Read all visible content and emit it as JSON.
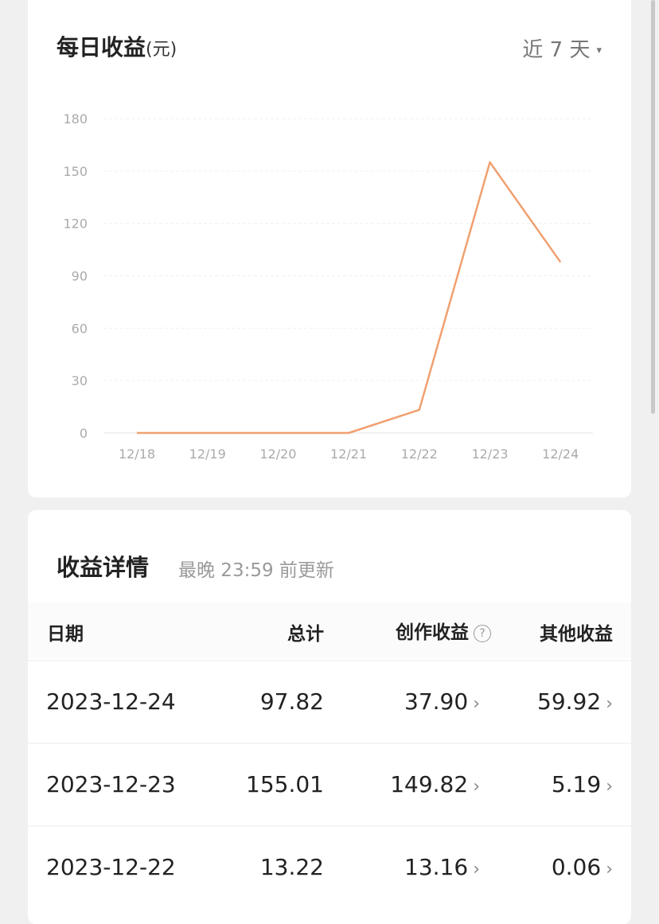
{
  "chart_card": {
    "title": "每日收益",
    "unit": "(元)",
    "range_label": "近 7 天",
    "range_caret": "▾"
  },
  "chart_data": {
    "type": "line",
    "categories": [
      "12/18",
      "12/19",
      "12/20",
      "12/21",
      "12/22",
      "12/23",
      "12/24"
    ],
    "values": [
      0,
      0,
      0,
      0,
      13.22,
      155.01,
      97.82
    ],
    "y_ticks": [
      "0",
      "30",
      "60",
      "90",
      "120",
      "150",
      "180"
    ],
    "ylim": [
      0,
      180
    ],
    "grid": true,
    "line_color": "#f0a070"
  },
  "details": {
    "title": "收益详情",
    "note": "最晚 23:59 前更新",
    "headers": {
      "date": "日期",
      "total": "总计",
      "creation": "创作收益",
      "help": "?",
      "other": "其他收益"
    },
    "rows": [
      {
        "date": "2023-12-24",
        "total": "97.82",
        "creation": "37.90",
        "other": "59.92"
      },
      {
        "date": "2023-12-23",
        "total": "155.01",
        "creation": "149.82",
        "other": "5.19"
      },
      {
        "date": "2023-12-22",
        "total": "13.22",
        "creation": "13.16",
        "other": "0.06"
      }
    ],
    "chevron": "›"
  }
}
